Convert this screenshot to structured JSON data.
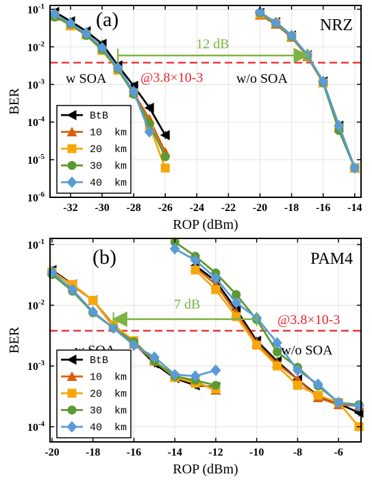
{
  "figure": {
    "colors": {
      "BtB": "#000000",
      "10 km": "#d95f0e",
      "20 km": "#f5a80a",
      "30 km": "#5b9a2f",
      "40 km": "#5b9bd5",
      "threshold": "#e8242b",
      "arrow": "#7cb342"
    }
  },
  "chart_data": [
    {
      "type": "line",
      "panel_label": "(a)",
      "format_label": "NRZ",
      "xlabel": "ROP (dBm)",
      "ylabel": "BER",
      "xlim": [
        -33.3,
        -13.6
      ],
      "ylim_log10": [
        -6,
        -0.9
      ],
      "log_y": true,
      "grid": true,
      "x_ticks": [
        -32,
        -30,
        -28,
        -26,
        -24,
        -22,
        -20,
        -18,
        -16,
        -14
      ],
      "y_ticks_exp": [
        -1,
        -2,
        -3,
        -4,
        -5,
        -6
      ],
      "threshold_y": 0.0038,
      "threshold_label": "@3.8×10-3",
      "group_labels": [
        {
          "text": "w SOA",
          "x": -32.3,
          "y": 0.0011
        },
        {
          "text": "w/o  SOA",
          "x": -21.5,
          "y": 0.0011
        }
      ],
      "power_gap": {
        "label": "12 dB",
        "x_from": -29,
        "x_to": -17,
        "y": 0.0059,
        "label_x": -23,
        "label_y": 0.0092
      },
      "legend": {
        "position": "bottom-left",
        "entries": [
          "BtB",
          "10  km",
          "20  km",
          "30  km",
          "40  km"
        ]
      },
      "series": [
        {
          "name": "BtB",
          "marker": "triangle-left",
          "points": [
            [
              -33,
              0.085
            ],
            [
              -32,
              0.048
            ],
            [
              -31,
              0.026
            ],
            [
              -30,
              0.012
            ],
            [
              -29,
              0.0032
            ],
            [
              -28,
              0.00092
            ],
            [
              -27,
              0.00024
            ],
            [
              -26,
              4.5e-05
            ],
            [
              -20,
              0.08
            ],
            [
              -19,
              0.045
            ],
            [
              -18,
              0.02
            ],
            [
              -17,
              0.006
            ],
            [
              -16,
              0.0012
            ],
            [
              -15,
              8e-05
            ],
            [
              -14,
              6e-06
            ]
          ]
        },
        {
          "name": "10  km",
          "marker": "triangle-up",
          "points": [
            [
              -33,
              0.065
            ],
            [
              -32,
              0.038
            ],
            [
              -31,
              0.021
            ],
            [
              -30,
              0.009
            ],
            [
              -29,
              0.0025
            ],
            [
              -28,
              0.0006
            ],
            [
              -27,
              0.00012
            ],
            [
              -26,
              1.6e-05
            ],
            [
              -20,
              0.07
            ],
            [
              -19,
              0.04
            ],
            [
              -18,
              0.018
            ],
            [
              -17,
              0.0055
            ],
            [
              -16,
              0.0011
            ],
            [
              -15,
              7e-05
            ],
            [
              -14,
              6e-06
            ]
          ]
        },
        {
          "name": "20  km",
          "marker": "square",
          "points": [
            [
              -33,
              0.068
            ],
            [
              -32,
              0.036
            ],
            [
              -31,
              0.021
            ],
            [
              -30,
              0.008
            ],
            [
              -29,
              0.0024
            ],
            [
              -28,
              0.0006
            ],
            [
              -27,
              8e-05
            ],
            [
              -26,
              6e-06
            ],
            [
              -20,
              0.075
            ],
            [
              -19,
              0.043
            ],
            [
              -18,
              0.019
            ],
            [
              -17,
              0.0058
            ],
            [
              -16,
              0.0011
            ],
            [
              -15,
              7e-05
            ],
            [
              -14,
              6e-06
            ]
          ]
        },
        {
          "name": "30  km",
          "marker": "circle",
          "points": [
            [
              -33,
              0.062
            ],
            [
              -32,
              0.04
            ],
            [
              -31,
              0.02
            ],
            [
              -30,
              0.0085
            ],
            [
              -29,
              0.0026
            ],
            [
              -28,
              0.00055
            ],
            [
              -27,
              9e-05
            ],
            [
              -26,
              1.2e-05
            ],
            [
              -20,
              0.08
            ],
            [
              -19,
              0.042
            ],
            [
              -18,
              0.019
            ],
            [
              -17,
              0.006
            ],
            [
              -16,
              0.0011
            ],
            [
              -15,
              6e-05
            ],
            [
              -14,
              6e-06
            ]
          ]
        },
        {
          "name": "40  km",
          "marker": "diamond",
          "points": [
            [
              -33,
              0.075
            ],
            [
              -32,
              0.042
            ],
            [
              -31,
              0.023
            ],
            [
              -30,
              0.0095
            ],
            [
              -29,
              0.0028
            ],
            [
              -28,
              0.00065
            ],
            [
              -27,
              5.5e-05
            ],
            [
              -20,
              0.085
            ],
            [
              -19,
              0.044
            ],
            [
              -18,
              0.02
            ],
            [
              -17,
              0.0062
            ],
            [
              -16,
              0.0012
            ],
            [
              -15,
              8e-05
            ],
            [
              -14,
              6e-06
            ]
          ]
        }
      ]
    },
    {
      "type": "line",
      "panel_label": "(b)",
      "format_label": "PAM4",
      "xlabel": "ROP (dBm)",
      "ylabel": "BER",
      "xlim": [
        -20.1,
        -4.9
      ],
      "ylim_log10": [
        -4.25,
        -0.9
      ],
      "log_y": true,
      "grid": true,
      "x_ticks": [
        -20,
        -18,
        -16,
        -14,
        -12,
        -10,
        -8,
        -6
      ],
      "y_ticks_exp": [
        -1,
        -2,
        -3,
        -4
      ],
      "threshold_y": 0.0038,
      "threshold_label": "@3.8×10-3",
      "group_labels": [
        {
          "text": "w SOA",
          "x": -18.9,
          "y": 0.00155
        },
        {
          "text": "w/o  SOA",
          "x": -8.8,
          "y": 0.00155
        }
      ],
      "power_gap": {
        "label": "7 dB",
        "x_from": -10,
        "x_to": -17,
        "y": 0.0059,
        "label_x": -13.4,
        "label_y": 0.0088
      },
      "legend": {
        "position": "bottom-left",
        "entries": [
          "BtB",
          "10  km",
          "20  km",
          "30  km",
          "40  km"
        ]
      },
      "series": [
        {
          "name": "BtB",
          "marker": "triangle-left",
          "points": [
            [
              -20,
              0.038
            ],
            [
              -19,
              0.022
            ],
            [
              -18,
              0.012
            ],
            [
              -17,
              0.0048
            ],
            [
              -16,
              0.0024
            ],
            [
              -15,
              0.0011
            ],
            [
              -14,
              0.00063
            ],
            [
              -13,
              0.00048
            ],
            [
              -12,
              0.00045
            ],
            [
              -13,
              0.045
            ],
            [
              -12,
              0.025
            ],
            [
              -11,
              0.0085
            ],
            [
              -10,
              0.0026
            ],
            [
              -9,
              0.0012
            ],
            [
              -8,
              0.0006
            ],
            [
              -7,
              0.00032
            ],
            [
              -6,
              0.00024
            ],
            [
              -5,
              0.00017
            ]
          ]
        },
        {
          "name": "10  km",
          "marker": "triangle-up",
          "points": [
            [
              -20,
              0.037
            ],
            [
              -19,
              0.021
            ],
            [
              -18,
              0.012
            ],
            [
              -17,
              0.0045
            ],
            [
              -16,
              0.0023
            ],
            [
              -15,
              0.0012
            ],
            [
              -14,
              0.00065
            ],
            [
              -13,
              0.00055
            ],
            [
              -12,
              0.0004
            ],
            [
              -13,
              0.042
            ],
            [
              -12,
              0.022
            ],
            [
              -11,
              0.0075
            ],
            [
              -10,
              0.0024
            ],
            [
              -9,
              0.0011
            ],
            [
              -8,
              0.0006
            ],
            [
              -7,
              0.0003
            ],
            [
              -6,
              0.00023
            ],
            [
              -5,
              0.00022
            ]
          ]
        },
        {
          "name": "20  km",
          "marker": "square",
          "points": [
            [
              -20,
              0.035
            ],
            [
              -19,
              0.022
            ],
            [
              -18,
              0.012
            ],
            [
              -17,
              0.0047
            ],
            [
              -16,
              0.0026
            ],
            [
              -15,
              0.0012
            ],
            [
              -14,
              0.00065
            ],
            [
              -13,
              0.00052
            ],
            [
              -12,
              0.00042
            ],
            [
              -13,
              0.038
            ],
            [
              -12,
              0.018
            ],
            [
              -11,
              0.0065
            ],
            [
              -10,
              0.0022
            ],
            [
              -9,
              0.001
            ],
            [
              -8,
              0.00048
            ],
            [
              -7,
              0.00033
            ],
            [
              -6,
              0.00025
            ],
            [
              -5,
              0.0001
            ]
          ]
        },
        {
          "name": "30  km",
          "marker": "circle",
          "points": [
            [
              -20,
              0.032
            ],
            [
              -19,
              0.017
            ],
            [
              -18,
              0.0075
            ],
            [
              -17,
              0.0042
            ],
            [
              -16,
              0.0025
            ],
            [
              -15,
              0.0012
            ],
            [
              -14,
              0.00068
            ],
            [
              -13,
              0.00058
            ],
            [
              -12,
              0.00048
            ],
            [
              -14,
              0.11
            ],
            [
              -13,
              0.064
            ],
            [
              -12,
              0.034
            ],
            [
              -11,
              0.015
            ],
            [
              -10,
              0.0058
            ],
            [
              -9,
              0.0017
            ],
            [
              -8,
              0.00095
            ],
            [
              -7,
              0.00047
            ],
            [
              -6,
              0.00025
            ],
            [
              -5,
              0.00023
            ]
          ]
        },
        {
          "name": "40  km",
          "marker": "diamond",
          "points": [
            [
              -20,
              0.035
            ],
            [
              -19,
              0.018
            ],
            [
              -18,
              0.0078
            ],
            [
              -17,
              0.0042
            ],
            [
              -16,
              0.0022
            ],
            [
              -15,
              0.0014
            ],
            [
              -14,
              0.00072
            ],
            [
              -13,
              0.00068
            ],
            [
              -12,
              0.00085
            ],
            [
              -14,
              0.085
            ],
            [
              -13,
              0.055
            ],
            [
              -12,
              0.028
            ],
            [
              -11,
              0.011
            ],
            [
              -10,
              0.0062
            ],
            [
              -9,
              0.0024
            ],
            [
              -8,
              0.00085
            ],
            [
              -7,
              0.0005
            ],
            [
              -6,
              0.00025
            ],
            [
              -5,
              0.00022
            ]
          ]
        }
      ]
    }
  ]
}
